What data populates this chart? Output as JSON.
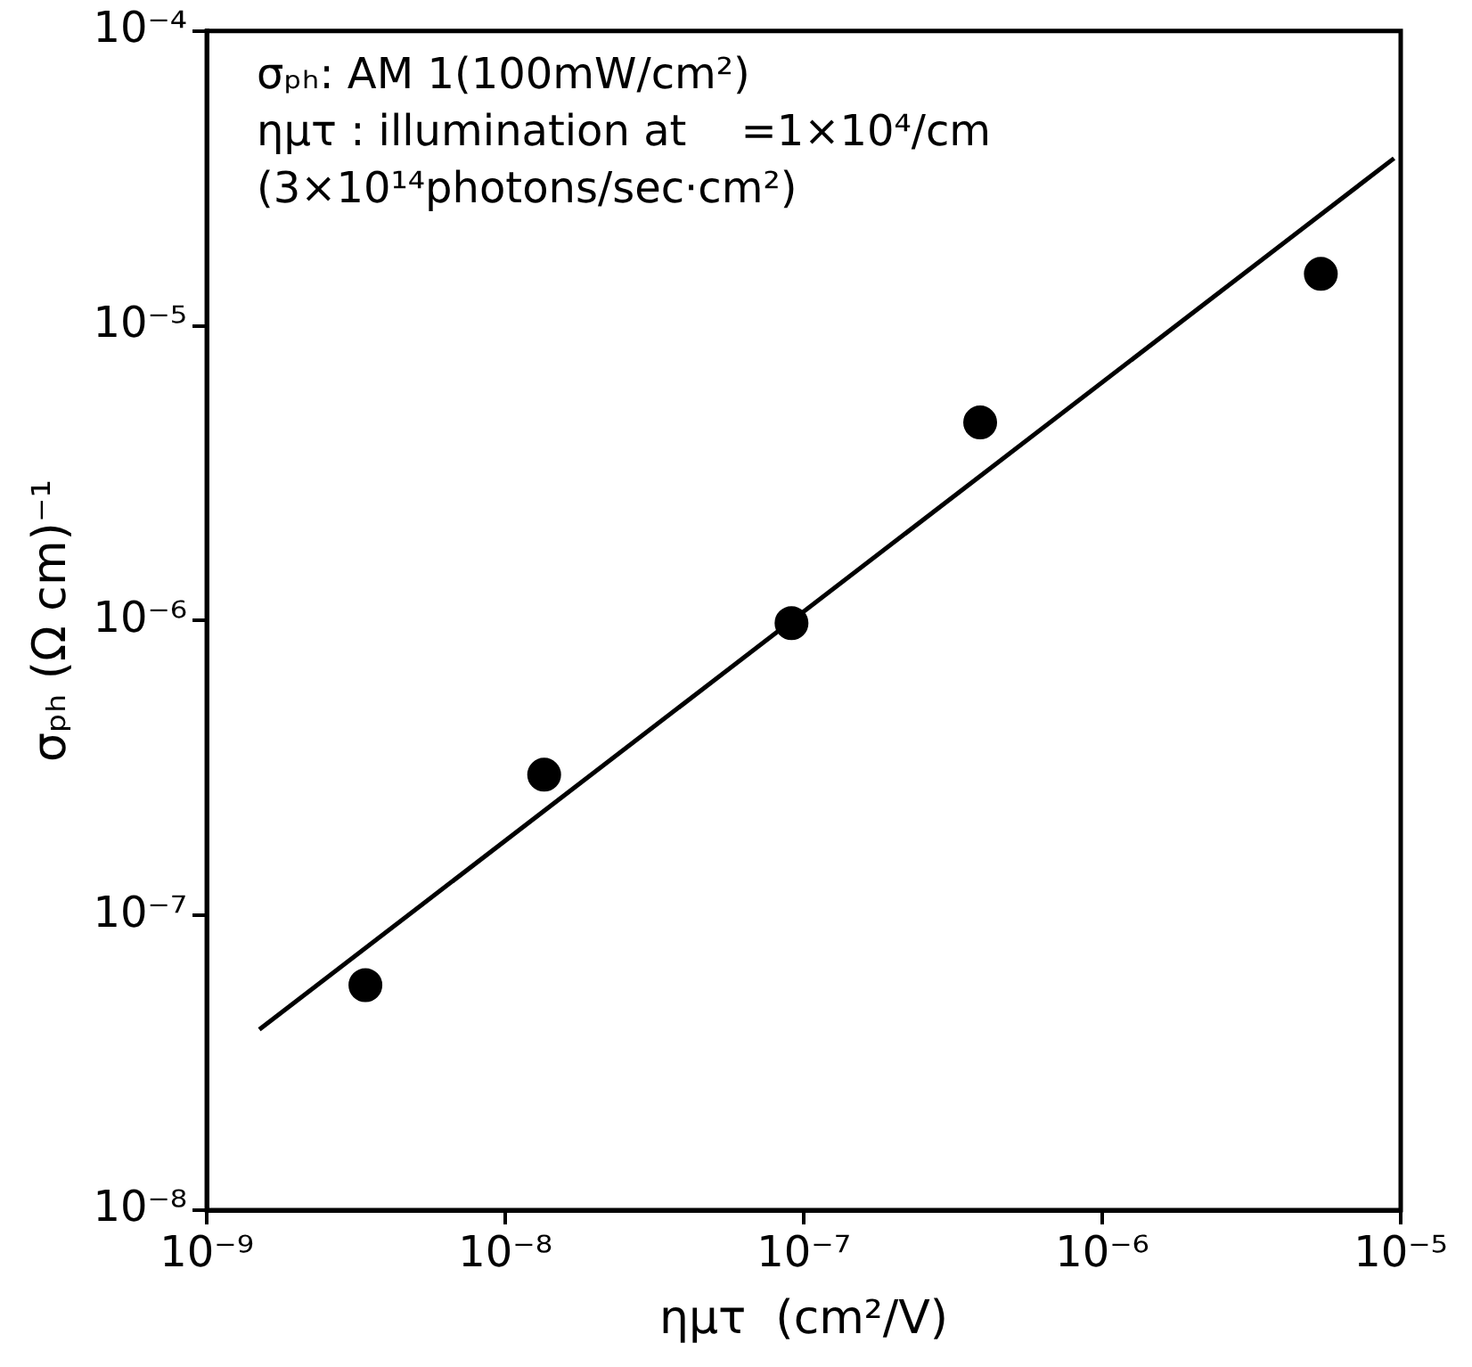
{
  "chart_data": {
    "type": "scatter",
    "xlabel": "ημτ  (cm²/V)",
    "ylabel": "σₚₕ (Ω cm)⁻¹",
    "log": "xy",
    "marker": "circle",
    "xlim": [
      1e-09,
      1e-05
    ],
    "ylim": [
      1e-08,
      0.0001
    ],
    "xticks": [
      {
        "value": 1e-09,
        "label": "10⁻⁹"
      },
      {
        "value": 1e-08,
        "label": "10⁻⁸"
      },
      {
        "value": 1e-07,
        "label": "10⁻⁷"
      },
      {
        "value": 1e-06,
        "label": "10⁻⁶"
      },
      {
        "value": 1e-05,
        "label": "10⁻⁵"
      }
    ],
    "yticks": [
      {
        "value": 1e-08,
        "label": "10⁻⁸"
      },
      {
        "value": 1e-07,
        "label": "10⁻⁷"
      },
      {
        "value": 1e-06,
        "label": "10⁻⁶"
      },
      {
        "value": 1e-05,
        "label": "10⁻⁵"
      },
      {
        "value": 0.0001,
        "label": "10⁻⁴"
      }
    ],
    "annotations": [
      "σₚₕ: AM 1(100mW/cm²)",
      "ημτ : illumination at    =1×10⁴/cm",
      "(3×10¹⁴photons/sec·cm²)"
    ],
    "series": [
      {
        "type": "scatter",
        "color": "#000000",
        "x": [
          3.4e-09,
          1.35e-08,
          9.1e-08,
          3.9e-07,
          5.4e-06
        ],
        "values": [
          5.8e-08,
          3e-07,
          9.8e-07,
          4.7e-06,
          1.5e-05
        ]
      },
      {
        "type": "line",
        "color": "#000000",
        "marker": "none",
        "x": [
          1.5e-09,
          9.5e-06
        ],
        "values": [
          4.1e-08,
          3.7e-05
        ]
      }
    ]
  }
}
